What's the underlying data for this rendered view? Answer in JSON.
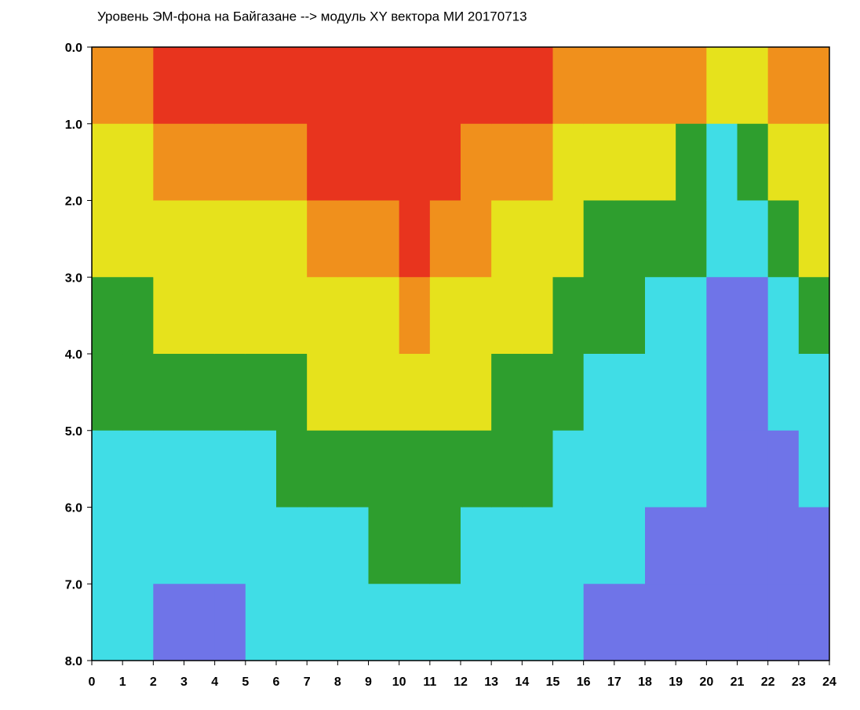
{
  "chart_data": {
    "type": "heatmap",
    "title": "Уровень ЭМ-фона на Байгазане  -->  модуль XY вектора МИ  20170713",
    "xlim": [
      0,
      24
    ],
    "ylim": [
      0,
      8
    ],
    "y_inverted": true,
    "xticks": [
      0,
      1,
      2,
      3,
      4,
      5,
      6,
      7,
      8,
      9,
      10,
      11,
      12,
      13,
      14,
      15,
      16,
      17,
      18,
      19,
      20,
      21,
      22,
      23,
      24
    ],
    "yticks": [
      {
        "value": 0,
        "label": "0.0"
      },
      {
        "value": 1,
        "label": "1.0"
      },
      {
        "value": 2,
        "label": "2.0"
      },
      {
        "value": 3,
        "label": "3.0"
      },
      {
        "value": 4,
        "label": "4.0"
      },
      {
        "value": 5,
        "label": "5.0"
      },
      {
        "value": 6,
        "label": "6.0"
      },
      {
        "value": 7,
        "label": "7.0"
      },
      {
        "value": 8,
        "label": "8.0"
      }
    ],
    "xbins": [
      0,
      1,
      2,
      3,
      4,
      5,
      6,
      7,
      8,
      9,
      10,
      11,
      12,
      13,
      14,
      15,
      16,
      17,
      18,
      19,
      20,
      21,
      22,
      23,
      24
    ],
    "ybins": [
      0,
      1,
      2,
      3,
      4,
      5,
      6,
      7,
      8
    ],
    "colors": [
      "#e8341e",
      "#f0901c",
      "#e6e21c",
      "#2e9e2e",
      "#40dde6",
      "#6f74e8"
    ],
    "values": [
      [
        1,
        2,
        2,
        3,
        3,
        4,
        4,
        4
      ],
      [
        1,
        2,
        2,
        3,
        3,
        4,
        4,
        4
      ],
      [
        0,
        1,
        2,
        2,
        3,
        4,
        4,
        5
      ],
      [
        0,
        1,
        2,
        2,
        3,
        4,
        4,
        5
      ],
      [
        0,
        1,
        2,
        2,
        3,
        4,
        4,
        5
      ],
      [
        0,
        1,
        2,
        2,
        3,
        4,
        4,
        4
      ],
      [
        0,
        1,
        2,
        2,
        3,
        3,
        4,
        4
      ],
      [
        0,
        0,
        1,
        2,
        2,
        3,
        4,
        4
      ],
      [
        0,
        0,
        1,
        2,
        2,
        3,
        4,
        4
      ],
      [
        0,
        0,
        1,
        2,
        2,
        3,
        3,
        4
      ],
      [
        0,
        0,
        0,
        1,
        2,
        3,
        3,
        4
      ],
      [
        0,
        0,
        1,
        2,
        2,
        3,
        3,
        4
      ],
      [
        0,
        1,
        1,
        2,
        2,
        3,
        4,
        4
      ],
      [
        0,
        1,
        2,
        2,
        3,
        3,
        4,
        4
      ],
      [
        0,
        1,
        2,
        2,
        3,
        3,
        4,
        4
      ],
      [
        1,
        2,
        2,
        3,
        3,
        4,
        4,
        4
      ],
      [
        1,
        2,
        3,
        3,
        4,
        4,
        4,
        5
      ],
      [
        1,
        2,
        3,
        3,
        4,
        4,
        4,
        5
      ],
      [
        1,
        2,
        3,
        4,
        4,
        4,
        5,
        5
      ],
      [
        1,
        3,
        3,
        4,
        4,
        4,
        5,
        5
      ],
      [
        2,
        4,
        4,
        5,
        5,
        5,
        5,
        5
      ],
      [
        2,
        3,
        4,
        5,
        5,
        5,
        5,
        5
      ],
      [
        1,
        2,
        3,
        4,
        4,
        5,
        5,
        5
      ],
      [
        1,
        2,
        2,
        3,
        4,
        4,
        5,
        5
      ]
    ]
  }
}
